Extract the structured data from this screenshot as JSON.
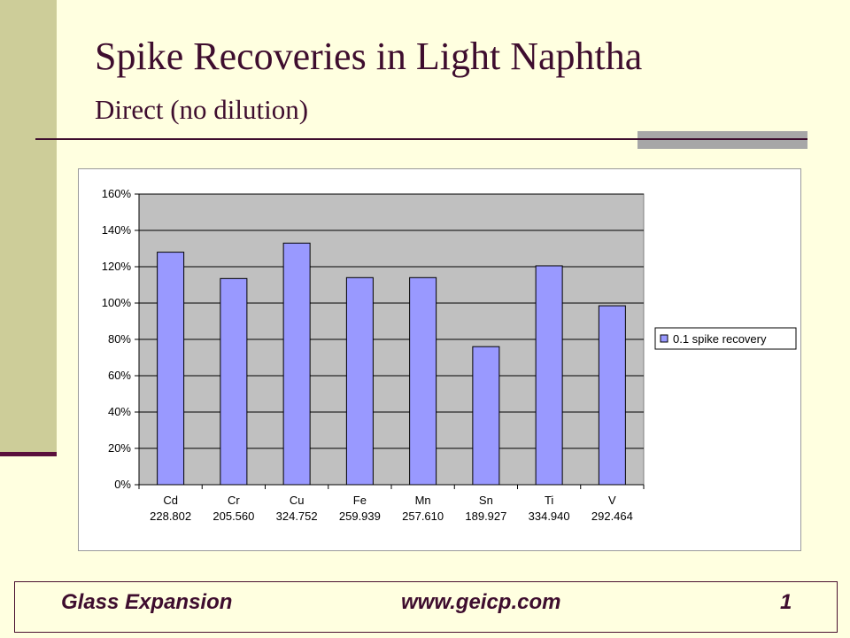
{
  "slide": {
    "title": "Spike Recoveries in Light Naphtha",
    "subtitle": "Direct (no dilution)"
  },
  "footer": {
    "company": "Glass Expansion",
    "url": "www.geicp.com",
    "page": "1"
  },
  "colors": {
    "background": "#ffffe0",
    "plot_area": "#c0c0c0",
    "bar_fill": "#9999ff",
    "accent": "#3e0d2e",
    "side_bar": "#cdcd99"
  },
  "chart_data": {
    "type": "bar",
    "categories": [
      "Cd",
      "Cr",
      "Cu",
      "Fe",
      "Mn",
      "Sn",
      "Ti",
      "V"
    ],
    "category_sublabels": [
      "228.802",
      "205.560",
      "324.752",
      "259.939",
      "257.610",
      "189.927",
      "334.940",
      "292.464"
    ],
    "series": [
      {
        "name": "0.1 spike recovery",
        "values": [
          128,
          113.5,
          133,
          114,
          114,
          76,
          120.5,
          98.5
        ]
      }
    ],
    "ylim": [
      0,
      160
    ],
    "ytick_values": [
      0,
      20,
      40,
      60,
      80,
      100,
      120,
      140,
      160
    ],
    "yticks": [
      "0%",
      "20%",
      "40%",
      "60%",
      "80%",
      "100%",
      "120%",
      "140%",
      "160%"
    ],
    "grid": true,
    "legend_position": "right"
  }
}
